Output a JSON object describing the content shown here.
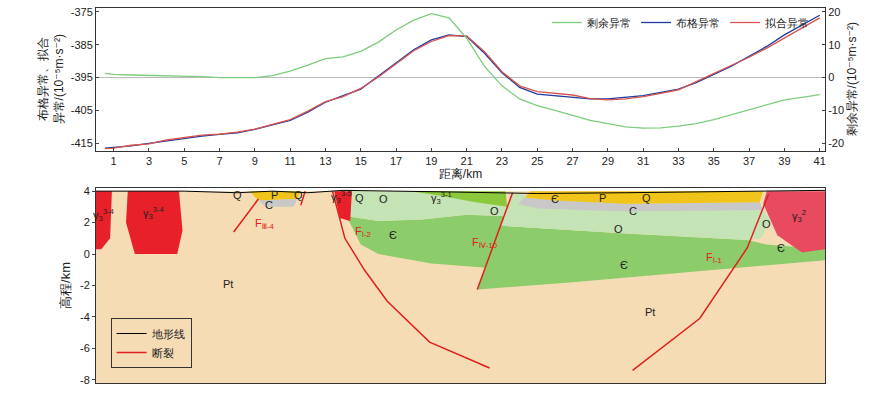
{
  "chart_data": [
    {
      "type": "line",
      "xlabel": "距离/km",
      "ylabel": [
        "布格异常、拟合",
        "异常/(10⁻⁵m·s⁻²)"
      ],
      "y2label": "剩余异常/(10⁻⁵m·s⁻²)",
      "x": [
        0.5,
        1,
        2,
        3,
        4,
        5,
        6,
        7,
        8,
        9,
        10,
        11,
        12,
        13,
        14,
        15,
        16,
        17,
        18,
        19,
        20,
        21,
        22,
        23,
        24,
        25,
        26,
        27,
        28,
        29,
        30,
        31,
        32,
        33,
        34,
        35,
        36,
        37,
        38,
        39,
        40,
        41
      ],
      "series": [
        {
          "name": "剩余异常",
          "color": "#7ccd7c",
          "axis": "y2",
          "values": [
            1.3,
            1,
            0.8,
            0.7,
            0.7,
            0.6,
            0.3,
            0,
            -0.1,
            0,
            0.6,
            2,
            3.8,
            5.8,
            6.3,
            8,
            10.8,
            14.5,
            17.5,
            19.5,
            18.2,
            12,
            3.5,
            -2.5,
            -6.5,
            -8.5,
            -10,
            -11.5,
            -13,
            -14,
            -15,
            -15.4,
            -15.3,
            -14.8,
            -14,
            -12.8,
            -11.3,
            -9.8,
            -8.2,
            -6.8,
            -6,
            -5.2
          ]
        },
        {
          "name": "布格异常",
          "color": "#1f3a9e",
          "axis": "y",
          "values": [
            -416.5,
            -416.3,
            -415.8,
            -415,
            -414.2,
            -413.5,
            -412.8,
            -412.3,
            -411.8,
            -410.8,
            -409.5,
            -408,
            -405.5,
            -402.5,
            -400.5,
            -398.5,
            -394.5,
            -390.5,
            -386.5,
            -383.5,
            -382,
            -382.5,
            -387.5,
            -393.5,
            -398,
            -400,
            -400.5,
            -401,
            -401.5,
            -401.5,
            -401,
            -400.5,
            -399.5,
            -398.5,
            -396.5,
            -394,
            -391.5,
            -388.5,
            -385.5,
            -382,
            -379,
            -376
          ]
        },
        {
          "name": "拟合异常",
          "color": "#d9534f",
          "axis": "y",
          "values": [
            -416.6,
            -416.5,
            -415.6,
            -415.2,
            -414,
            -413.2,
            -412.5,
            -412.2,
            -411.6,
            -410.7,
            -409.3,
            -407.8,
            -405.2,
            -402.3,
            -400.8,
            -398.3,
            -394.8,
            -390.8,
            -386.8,
            -384,
            -382.2,
            -382.3,
            -387,
            -393.2,
            -397.5,
            -399.3,
            -399.8,
            -400.3,
            -401.4,
            -401.8,
            -401.5,
            -400.8,
            -399.8,
            -398.7,
            -396.2,
            -393.8,
            -391.4,
            -388.8,
            -386,
            -383,
            -380,
            -376.8
          ]
        }
      ],
      "xlim": [
        0,
        41.3
      ],
      "xticks": [
        1,
        3,
        5,
        7,
        9,
        11,
        13,
        15,
        17,
        19,
        21,
        23,
        25,
        27,
        29,
        31,
        33,
        35,
        37,
        39,
        41
      ],
      "ylim": [
        -417.2,
        -373.8
      ],
      "yticks": [
        -415,
        -405,
        -395,
        -385,
        -375
      ],
      "y2lim": [
        -22.2,
        21.2
      ],
      "y2ticks": [
        -20,
        -10,
        0,
        10,
        20
      ],
      "legend": "top right",
      "grid": false
    },
    {
      "type": "section",
      "ylabel": "高程/km",
      "xlim": [
        0,
        41.3
      ],
      "ylim": [
        -8.2,
        4.2
      ],
      "yticks": [
        4,
        2,
        0,
        -2,
        -4,
        -6,
        -8
      ],
      "tick_labels": "y",
      "legend": "bottom left",
      "units": [
        {
          "color": "#f5dcb5",
          "x": [
            0,
            41.3,
            41.3,
            0
          ],
          "y": [
            -8.2,
            -8.2,
            4,
            4
          ]
        },
        {
          "color": "#8dcc6a",
          "x": [
            14.2,
            16,
            18.5,
            21,
            23.4,
            23.0,
            22.5,
            19,
            16,
            15
          ],
          "y": [
            2.4,
            2.1,
            2.2,
            2.5,
            2.4,
            0.5,
            -0.9,
            -0.6,
            0.0,
            0.6
          ]
        },
        {
          "color": "#c5e4b5",
          "x": [
            14.4,
            17.8,
            20.5,
            23.3,
            23.4,
            21,
            18.5,
            16,
            14.2
          ],
          "y": [
            4,
            4,
            3.6,
            3.0,
            2.4,
            2.5,
            2.2,
            2.1,
            2.4
          ]
        },
        {
          "color": "#8cc83c",
          "x": [
            17.8,
            23.2,
            23.3,
            21.5,
            19.5
          ],
          "y": [
            4,
            4,
            3.0,
            3.3,
            3.7
          ]
        },
        {
          "color": "#8dcc6a",
          "x": [
            22.9,
            30,
            36.9,
            38,
            41.3,
            41.3,
            33,
            27,
            21.6
          ],
          "y": [
            1.8,
            1.3,
            0.9,
            0.6,
            0.3,
            -0.4,
            -1.2,
            -1.8,
            -2.25
          ]
        },
        {
          "color": "#c5e4b5",
          "x": [
            23.6,
            25,
            30,
            37.6,
            38.2,
            37.7,
            36.9,
            30,
            22.9
          ],
          "y": [
            3.9,
            3.6,
            3.2,
            3.0,
            2.2,
            1.0,
            0.9,
            1.3,
            1.8
          ]
        },
        {
          "color": "#c8c8c8",
          "x": [
            24.3,
            26,
            30,
            37.6,
            37.8,
            30,
            25,
            23.9
          ],
          "y": [
            3.6,
            3.4,
            3.2,
            3.3,
            2.8,
            2.7,
            2.9,
            3.2
          ]
        },
        {
          "color": "#f0c419",
          "x": [
            24.6,
            37.8,
            37.6,
            30,
            26,
            24.3
          ],
          "y": [
            4,
            4,
            3.3,
            3.2,
            3.4,
            3.6
          ]
        },
        {
          "color": "#f0c419",
          "x": [
            8.7,
            11.6,
            11.4,
            9.2
          ],
          "y": [
            4,
            4,
            3.5,
            3.4
          ]
        },
        {
          "color": "#c8c8c8",
          "x": [
            9.2,
            11.4,
            11.2,
            9.6
          ],
          "y": [
            3.4,
            3.5,
            3.0,
            3.0
          ]
        },
        {
          "color": "#e84a5f",
          "x": [
            38,
            41.3,
            41.3,
            40,
            38.6,
            37.8
          ],
          "y": [
            4,
            4,
            0.3,
            0.1,
            1.2,
            3.2
          ]
        },
        {
          "color": "#e8202a",
          "x": [
            0,
            0.9,
            0.8,
            0.3,
            0
          ],
          "y": [
            4,
            4,
            1,
            0.3,
            0.3
          ]
        },
        {
          "color": "#e8202a",
          "x": [
            1.8,
            4.7,
            4.9,
            4.6,
            2.2,
            1.7
          ],
          "y": [
            4,
            4,
            1.5,
            0,
            0,
            2
          ]
        },
        {
          "color": "#e8202a",
          "x": [
            13.5,
            14.5,
            14.4,
            13.8
          ],
          "y": [
            4,
            4,
            2.1,
            2.3
          ]
        }
      ],
      "terrain": {
        "name": "地形线",
        "color": "#000000",
        "x": [
          0,
          5,
          8,
          10,
          12,
          14,
          20,
          25,
          30,
          35,
          38,
          41.3
        ],
        "y": [
          4,
          4,
          3.9,
          4,
          3.9,
          4.05,
          3.95,
          3.85,
          3.9,
          3.95,
          4,
          4.05
        ]
      },
      "faults": {
        "name": "断裂",
        "color": "#e02020",
        "lines": [
          {
            "x": [
              9.2,
              7.8
            ],
            "y": [
              3.5,
              1.4
            ]
          },
          {
            "x": [
              11.85,
              11.6
            ],
            "y": [
              4,
              3.1
            ]
          },
          {
            "x": [
              13.4,
              14.1,
              15.2,
              16.5,
              18.9,
              22.3
            ],
            "y": [
              4,
              1.0,
              -1.0,
              -3.0,
              -5.6,
              -7.25
            ]
          },
          {
            "x": [
              23.6,
              21.6
            ],
            "y": [
              3.9,
              -2.25
            ]
          },
          {
            "x": [
              38.1,
              36.9,
              34.2,
              30.4
            ],
            "y": [
              3.8,
              0.4,
              -4.1,
              -7.4
            ]
          }
        ]
      },
      "labels": [
        {
          "text": "γ",
          "sub": "3",
          "sup": "3-4",
          "x": 0.45,
          "y": 2.5
        },
        {
          "text": "γ",
          "sub": "3",
          "sup": "3-4",
          "x": 3.3,
          "y": 2.6
        },
        {
          "text": "Q",
          "x": 8.0,
          "y": 3.75
        },
        {
          "text": "P",
          "x": 10.1,
          "y": 3.75
        },
        {
          "text": "C",
          "x": 9.8,
          "y": 3.1
        },
        {
          "text": "Q",
          "x": 11.5,
          "y": 3.75
        },
        {
          "text": "γ",
          "sub": "3",
          "sup": "3-5",
          "x": 13.9,
          "y": 3.6
        },
        {
          "text": "Q",
          "x": 14.9,
          "y": 3.55
        },
        {
          "text": "O",
          "x": 16.3,
          "y": 3.5
        },
        {
          "text": "γ",
          "sub": "3",
          "sup": "3-1",
          "x": 19.6,
          "y": 3.55
        },
        {
          "text": "O",
          "x": 22.6,
          "y": 2.75
        },
        {
          "text": "Є",
          "x": 16.8,
          "y": 1.2
        },
        {
          "text": "Є",
          "x": 26.0,
          "y": 3.5
        },
        {
          "text": "P",
          "x": 28.7,
          "y": 3.55
        },
        {
          "text": "Q",
          "x": 31.2,
          "y": 3.55
        },
        {
          "text": "C",
          "x": 30.4,
          "y": 2.75
        },
        {
          "text": "O",
          "x": 29.6,
          "y": 1.6
        },
        {
          "text": "Є",
          "x": 29.9,
          "y": -0.7
        },
        {
          "text": "O",
          "x": 38.0,
          "y": 1.9
        },
        {
          "text": "Є",
          "x": 38.8,
          "y": 0.4
        },
        {
          "text": "γ",
          "sub": "3",
          "sup": "2",
          "x": 39.8,
          "y": 2.4
        },
        {
          "text": "Pt",
          "x": 7.5,
          "y": -1.9
        },
        {
          "text": "Pt",
          "x": 31.4,
          "y": -3.7
        },
        {
          "text": "F",
          "sub": "Ⅲ-4",
          "x": 9.6,
          "y": 1.9,
          "color": "#e02020"
        },
        {
          "text": "F",
          "sub": "Ⅰ-2",
          "x": 15.1,
          "y": 1.4,
          "color": "#e02020"
        },
        {
          "text": "F",
          "sub": "Ⅳ-10",
          "x": 22.0,
          "y": 0.7,
          "color": "#e02020"
        },
        {
          "text": "F",
          "sub": "Ⅰ-1",
          "x": 35.0,
          "y": -0.25,
          "color": "#e02020"
        }
      ]
    }
  ]
}
